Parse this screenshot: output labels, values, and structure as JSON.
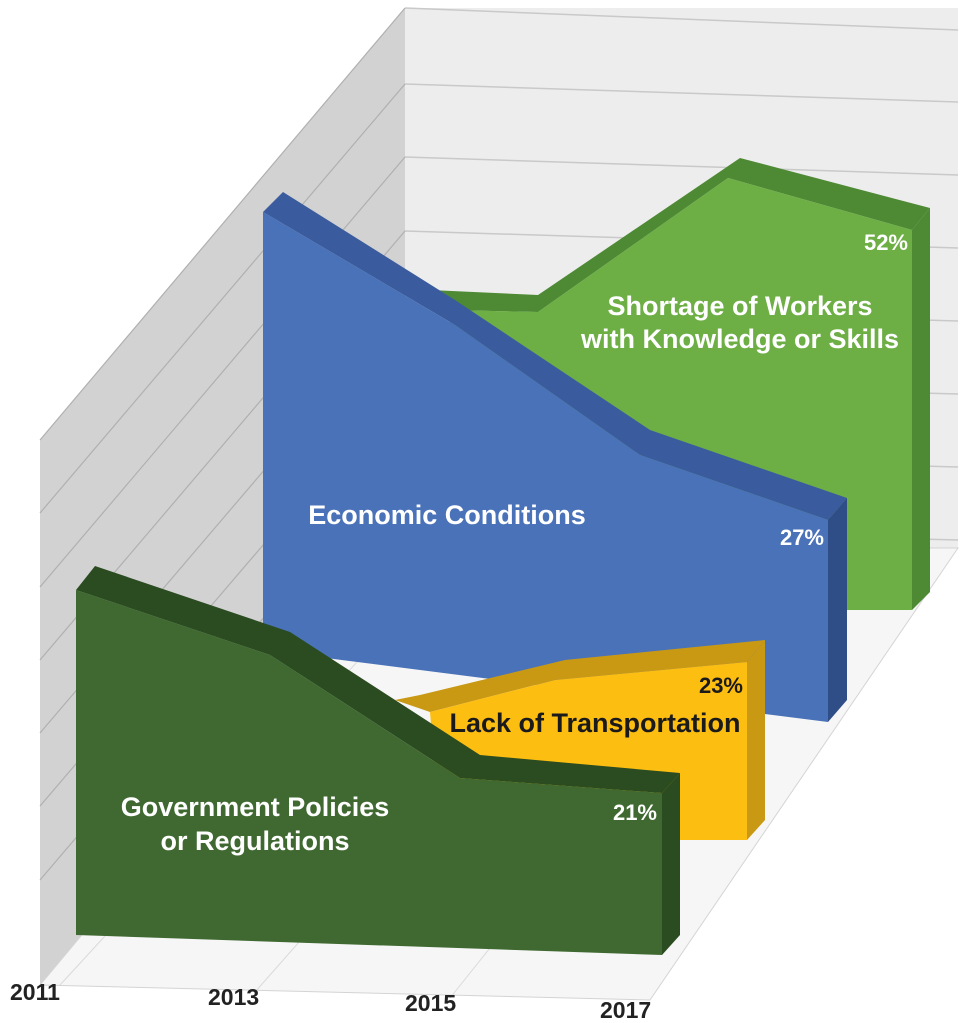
{
  "chart_data": {
    "type": "area",
    "x": [
      "2011",
      "2013",
      "2015",
      "2017"
    ],
    "xlabel": "",
    "ylabel": "",
    "grid": true,
    "series": [
      {
        "name": "Shortage of Workers with Knowledge or Skills",
        "line1": "Shortage of Workers",
        "line2": "with Knowledge or Skills",
        "values": [
          null,
          30,
          55,
          52
        ],
        "end_label": "52%",
        "color": "#6DAE45"
      },
      {
        "name": "Economic Conditions",
        "line1": "Economic Conditions",
        "line2": "",
        "values": [
          75,
          60,
          35,
          27
        ],
        "end_label": "27%",
        "color": "#4A72B8"
      },
      {
        "name": "Lack of Transportation",
        "line1": "Lack of Transportation",
        "line2": "",
        "values": [
          null,
          17,
          22,
          23
        ],
        "end_label": "23%",
        "color": "#FDBE12"
      },
      {
        "name": "Government Policies or Regulations",
        "line1": "Government Policies",
        "line2": "or Regulations",
        "values": [
          35,
          30,
          21,
          21
        ],
        "end_label": "21%",
        "color": "#3F6930"
      }
    ]
  }
}
